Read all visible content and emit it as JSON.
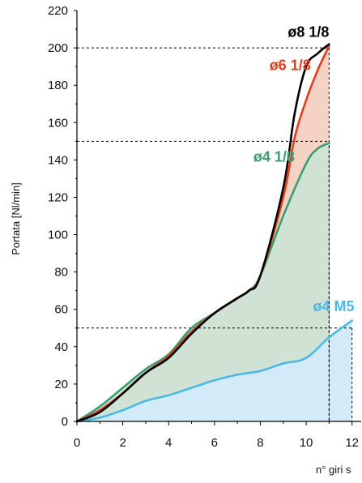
{
  "chart_data": {
    "type": "area",
    "xlabel": "n° giri s",
    "ylabel": "Portata [Nl/min]",
    "xlim": [
      0,
      12.4
    ],
    "ylim": [
      0,
      220
    ],
    "x_ticks": [
      0,
      2,
      4,
      6,
      8,
      10,
      12
    ],
    "y_ticks": [
      0,
      20,
      40,
      60,
      80,
      100,
      120,
      140,
      160,
      180,
      200,
      220
    ],
    "grid": false,
    "reference_lines": [
      {
        "y": 200,
        "x_end": 11
      },
      {
        "y": 150,
        "x_end": 11
      },
      {
        "y": 50,
        "x_end": 12
      }
    ],
    "series": [
      {
        "name": "ø4 M5",
        "color": "#4bb8e8",
        "fill": "#d3eaf8",
        "x": [
          0,
          1,
          2,
          3,
          4,
          5,
          6,
          7,
          8,
          9,
          10,
          11,
          12
        ],
        "y": [
          0,
          2,
          6,
          11,
          14,
          18,
          22,
          25,
          27,
          31,
          34,
          45,
          54
        ]
      },
      {
        "name": "ø4 1/8",
        "color": "#3a9e6e",
        "fill": "#cfe2d4",
        "x": [
          0,
          1,
          2,
          3,
          4,
          5,
          6,
          7,
          7.5,
          8,
          9,
          10,
          10.5,
          11
        ],
        "y": [
          0,
          8,
          18,
          28,
          36,
          50,
          58,
          66,
          70,
          78,
          110,
          138,
          146,
          149
        ]
      },
      {
        "name": "ø6 1/8",
        "color": "#e33b1d",
        "fill": "#f6d2c5",
        "x": [
          0,
          1,
          2,
          3,
          4,
          5,
          6,
          7,
          7.5,
          8,
          9,
          9.5,
          10,
          10.5,
          11
        ],
        "y": [
          0,
          6,
          15,
          26,
          35,
          48,
          58,
          66,
          70,
          78,
          120,
          152,
          172,
          188,
          201
        ]
      },
      {
        "name": "ø8 1/8",
        "color": "#000000",
        "fill": "none",
        "x": [
          0,
          1,
          2,
          3,
          4,
          5,
          6,
          7,
          7.5,
          8,
          9,
          9.5,
          10,
          10.5,
          11
        ],
        "y": [
          0,
          5,
          15,
          26,
          34,
          47,
          58,
          66,
          70,
          78,
          125,
          165,
          190,
          197,
          202
        ]
      }
    ],
    "series_labels": [
      {
        "series": "ø8 1/8",
        "at": [
          11,
          206
        ],
        "anchor": "end"
      },
      {
        "series": "ø6 1/8",
        "at": [
          10.2,
          188
        ],
        "anchor": "end"
      },
      {
        "series": "ø4 1/8",
        "at": [
          9.5,
          139
        ],
        "anchor": "end"
      },
      {
        "series": "ø4 M5",
        "at": [
          12.1,
          59
        ],
        "anchor": "end"
      }
    ]
  }
}
